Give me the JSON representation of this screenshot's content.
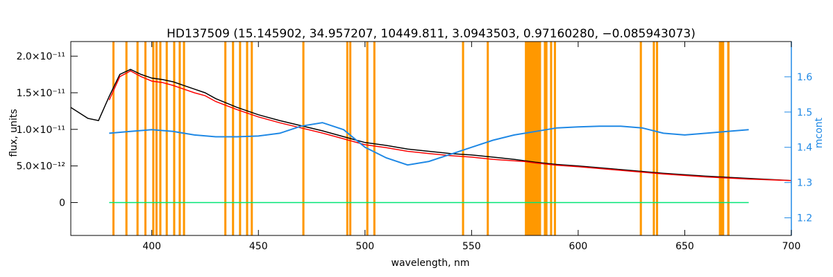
{
  "chart_data": {
    "type": "line",
    "title": "HD137509    (15.145902, 34.957207, 10449.811, 3.0943503, 0.97160280, −0.085943073)",
    "xlabel": "wavelength, nm",
    "ylabel": "flux, units",
    "ylabel_right": "mcont",
    "xlim": [
      362,
      700
    ],
    "ylim": [
      -4.5e-12,
      2.2e-11
    ],
    "ylim_right": [
      1.15,
      1.7
    ],
    "x_ticks": [
      400,
      450,
      500,
      550,
      600,
      650,
      700
    ],
    "x_tick_labels": [
      "400",
      "450",
      "500",
      "550",
      "600",
      "650",
      "700"
    ],
    "y_ticks": [
      0,
      5e-12,
      1e-11,
      1.5e-11,
      2e-11
    ],
    "y_tick_labels": [
      "0",
      "5.0×10⁻¹²",
      "1.0×10⁻¹¹",
      "1.5×10⁻¹¹",
      "2.0×10⁻¹¹"
    ],
    "y_right_ticks": [
      1.2,
      1.3,
      1.4,
      1.5,
      1.6
    ],
    "y_right_tick_labels": [
      "1.2",
      "1.3",
      "1.4",
      "1.5",
      "1.6"
    ],
    "masked_bands": [
      [
        381.5,
        382.5
      ],
      [
        387.6,
        388.6
      ],
      [
        392.8,
        393.8
      ],
      [
        396.5,
        397.5
      ],
      [
        400.2,
        401.2
      ],
      [
        401.7,
        402.7
      ],
      [
        403.5,
        404.5
      ],
      [
        406.5,
        407.5
      ],
      [
        410.0,
        411.0
      ],
      [
        412.6,
        413.6
      ],
      [
        414.6,
        415.6
      ],
      [
        434.0,
        435.0
      ],
      [
        437.6,
        438.6
      ],
      [
        440.9,
        441.9
      ],
      [
        444.2,
        445.2
      ],
      [
        446.4,
        447.4
      ],
      [
        470.6,
        471.6
      ],
      [
        491.2,
        492.2
      ],
      [
        492.6,
        493.6
      ],
      [
        500.6,
        501.6
      ],
      [
        503.9,
        504.9
      ],
      [
        545.5,
        546.5
      ],
      [
        557.1,
        558.1
      ],
      [
        575.0,
        582.6
      ],
      [
        583.9,
        585.6
      ],
      [
        586.8,
        587.8
      ],
      [
        588.6,
        589.6
      ],
      [
        628.9,
        629.9
      ],
      [
        635.0,
        636.0
      ],
      [
        636.5,
        637.5
      ],
      [
        666.0,
        668.5
      ],
      [
        669.9,
        671.0
      ]
    ],
    "series": [
      {
        "color": "#000000",
        "x": [
          362,
          370,
          375,
          380,
          385,
          390,
          395,
          400,
          405,
          410,
          415,
          420,
          425,
          430,
          440,
          450,
          460,
          470,
          480,
          490,
          500,
          510,
          520,
          530,
          540,
          550,
          560,
          570,
          580,
          590,
          600,
          620,
          640,
          660,
          680,
          700
        ],
        "y": [
          1.3e-11,
          1.15e-11,
          1.12e-11,
          1.45e-11,
          1.75e-11,
          1.82e-11,
          1.75e-11,
          1.7e-11,
          1.68e-11,
          1.65e-11,
          1.6e-11,
          1.55e-11,
          1.5e-11,
          1.42e-11,
          1.3e-11,
          1.2e-11,
          1.12e-11,
          1.05e-11,
          9.8e-12,
          9e-12,
          8.2e-12,
          7.8e-12,
          7.3e-12,
          7e-12,
          6.7e-12,
          6.5e-12,
          6.2e-12,
          5.9e-12,
          5.5e-12,
          5.2e-12,
          5e-12,
          4.5e-12,
          4e-12,
          3.6e-12,
          3.3e-12,
          3e-12
        ]
      },
      {
        "color": "#ff0000",
        "x": [
          380,
          385,
          390,
          395,
          400,
          405,
          410,
          415,
          420,
          425,
          430,
          440,
          450,
          460,
          470,
          480,
          490,
          500,
          510,
          520,
          530,
          540,
          550,
          560,
          570,
          575,
          580,
          590,
          600,
          620,
          640,
          660,
          680,
          700
        ],
        "y": [
          1.4e-11,
          1.72e-11,
          1.8e-11,
          1.72e-11,
          1.66e-11,
          1.64e-11,
          1.6e-11,
          1.55e-11,
          1.5e-11,
          1.46e-11,
          1.38e-11,
          1.27e-11,
          1.17e-11,
          1.09e-11,
          1.02e-11,
          9.5e-12,
          8.7e-12,
          7.9e-12,
          7.5e-12,
          7e-12,
          6.7e-12,
          6.4e-12,
          6.2e-12,
          5.9e-12,
          5.7e-12,
          5.6e-12,
          5.4e-12,
          5.1e-12,
          4.9e-12,
          4.4e-12,
          3.9e-12,
          3.5e-12,
          3.2e-12,
          3e-12
        ]
      },
      {
        "color": "#1e88e5",
        "axis": "right",
        "x": [
          380,
          390,
          400,
          410,
          420,
          430,
          440,
          450,
          460,
          470,
          480,
          490,
          500,
          510,
          520,
          530,
          540,
          550,
          560,
          570,
          580,
          590,
          600,
          610,
          620,
          630,
          640,
          650,
          660,
          670,
          680
        ],
        "y": [
          1.44,
          1.445,
          1.45,
          1.445,
          1.435,
          1.43,
          1.43,
          1.432,
          1.44,
          1.46,
          1.47,
          1.45,
          1.4,
          1.37,
          1.35,
          1.36,
          1.38,
          1.4,
          1.42,
          1.435,
          1.445,
          1.455,
          1.458,
          1.46,
          1.46,
          1.455,
          1.44,
          1.435,
          1.44,
          1.445,
          1.45
        ]
      },
      {
        "color": "#00e676",
        "x": [
          380,
          390,
          400,
          410,
          420,
          430,
          440,
          450,
          460,
          470,
          480,
          490,
          500,
          520,
          540,
          560,
          575,
          585,
          600,
          620,
          640,
          660,
          680
        ],
        "y": [
          0,
          0,
          0,
          0,
          0,
          0,
          0,
          0,
          0,
          0,
          0,
          0,
          0,
          0,
          0,
          0,
          0,
          0,
          0,
          0,
          0,
          0,
          0
        ]
      }
    ]
  }
}
